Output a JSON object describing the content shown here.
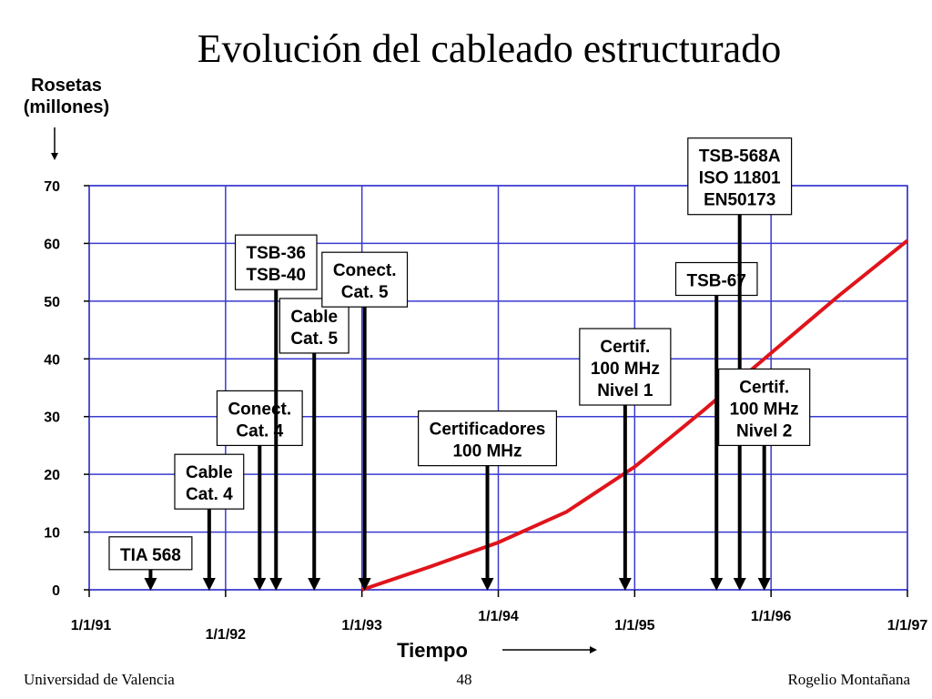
{
  "slide": {
    "title": "Evolución del cableado estructurado",
    "footer_left": "Universidad de Valencia",
    "footer_center": "48",
    "footer_right": "Rogelio Montañana"
  },
  "chart_data": {
    "type": "line",
    "title": "Evolución del cableado estructurado",
    "ylabel": "Rosetas (millones)",
    "xlabel": "Tiempo",
    "ylim": [
      0,
      70
    ],
    "yticks": [
      0,
      10,
      20,
      30,
      40,
      50,
      60,
      70
    ],
    "xlim": [
      "1/1/91",
      "1/1/97"
    ],
    "xticks": [
      "1/1/91",
      "1/1/92",
      "1/1/93",
      "1/1/94",
      "1/1/95",
      "1/1/96",
      "1/1/97"
    ],
    "grid": true,
    "series": [
      {
        "color": "#e0141b",
        "points": [
          {
            "x": 1993.0,
            "y": 0
          },
          {
            "x": 1993.5,
            "y": 4
          },
          {
            "x": 1994.0,
            "y": 8.2
          },
          {
            "x": 1994.5,
            "y": 13.5
          },
          {
            "x": 1995.0,
            "y": 21.3
          },
          {
            "x": 1995.5,
            "y": 31.0
          },
          {
            "x": 1996.0,
            "y": 41.0
          },
          {
            "x": 1996.5,
            "y": 51.0
          },
          {
            "x": 1997.0,
            "y": 60.5
          }
        ]
      }
    ],
    "annotations": [
      {
        "label": [
          "TIA 568"
        ],
        "x": 1991.45,
        "y_top": 3.5
      },
      {
        "label": [
          "Cable",
          "Cat. 4"
        ],
        "x": 1991.88,
        "y_top": 14
      },
      {
        "label": [
          "Conect.",
          "Cat. 4"
        ],
        "x": 1992.25,
        "y_top": 25
      },
      {
        "label": [
          "TSB-36",
          "TSB-40"
        ],
        "x": 1992.37,
        "y_top": 52
      },
      {
        "label": [
          "Cable",
          "Cat. 5"
        ],
        "x": 1992.65,
        "y_top": 41
      },
      {
        "label": [
          "Conect.",
          "Cat. 5"
        ],
        "x": 1993.02,
        "y_top": 49
      },
      {
        "label": [
          "Certificadores",
          "100 MHz"
        ],
        "x": 1993.92,
        "y_top": 21.5
      },
      {
        "label": [
          "Certif.",
          "100 MHz",
          "Nivel 1"
        ],
        "x": 1994.93,
        "y_top": 32
      },
      {
        "label": [
          "TSB-67"
        ],
        "x": 1995.6,
        "y_top": 51
      },
      {
        "label": [
          "TSB-568A",
          "ISO 11801",
          "EN50173"
        ],
        "x": 1995.77,
        "y_top": 65
      },
      {
        "label": [
          "Certif.",
          "100 MHz",
          "Nivel 2"
        ],
        "x": 1995.95,
        "y_top": 25
      }
    ]
  }
}
